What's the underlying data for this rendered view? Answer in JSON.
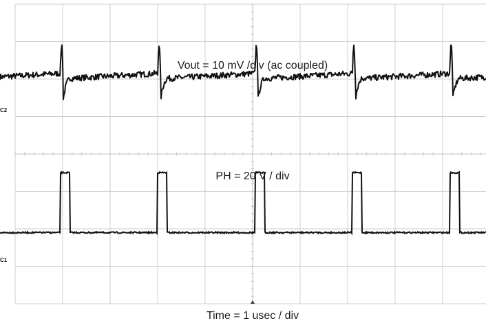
{
  "chart_data": {
    "type": "line",
    "title": "",
    "xlabel": "Time = 1 usec / div",
    "grid": true,
    "divisions": {
      "horizontal": 10,
      "vertical": 8
    },
    "xlim": [
      0,
      10
    ],
    "colors": {
      "trace": "#111111",
      "grid": "#cfcfcf",
      "grid_minor": "#e6e6e6",
      "background": "#ffffff"
    },
    "series": [
      {
        "name": "C2",
        "label": "Vout = 10 mV /div (ac coupled)",
        "coupling": "ac",
        "volts_per_div": "10 mV",
        "baseline_div": 1.88,
        "period_div": 2.05,
        "first_edge_div": 0.95,
        "spike_mV": {
          "up": 8,
          "down": -7
        },
        "noise_mV": 0.8
      },
      {
        "name": "C1",
        "label": "PH = 20 V / div",
        "volts_per_div": "20 V",
        "baseline_div": 6.1,
        "high_level_div": 4.5,
        "period_div": 2.05,
        "first_edge_div": 0.95,
        "pulse_width_div": 0.2,
        "noise_div": 0.02
      }
    ]
  }
}
